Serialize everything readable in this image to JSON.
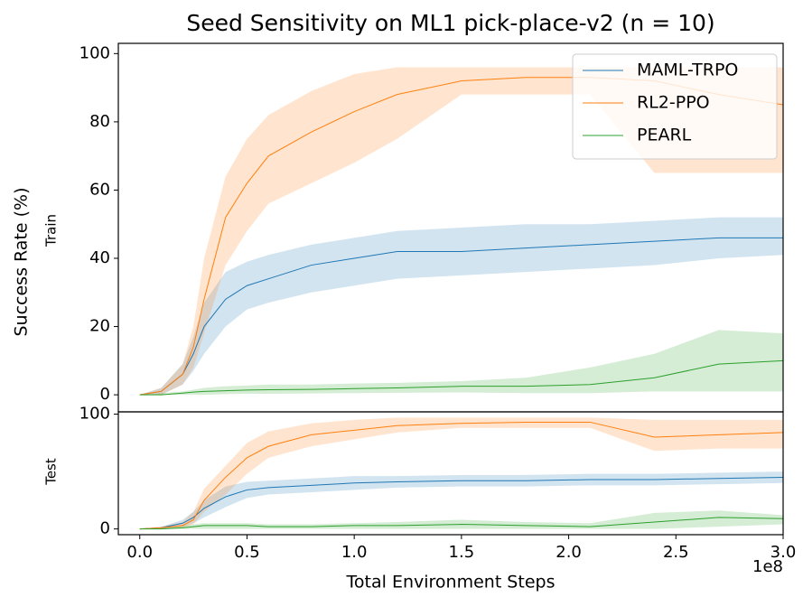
{
  "chart_data": [
    {
      "type": "line",
      "title": "Seed Sensitivity on ML1 pick-place-v2 (n = 10)",
      "ylabel": "Success Rate (%)",
      "panel_label": "Train",
      "x": [
        0,
        0.1,
        0.2,
        0.25,
        0.3,
        0.4,
        0.5,
        0.6,
        0.8,
        1.0,
        1.2,
        1.5,
        1.8,
        2.1,
        2.4,
        2.7,
        3.0
      ],
      "xlim": [
        -0.1,
        3.0
      ],
      "ylim": [
        -5,
        103
      ],
      "yticks": [
        0,
        20,
        40,
        60,
        80,
        100
      ],
      "legend": "upper right",
      "series": [
        {
          "name": "MAML-TRPO",
          "color": "#1f77b4",
          "values": [
            0,
            1,
            6,
            12,
            20,
            28,
            32,
            34,
            38,
            40,
            42,
            42,
            43,
            44,
            45,
            46,
            46
          ],
          "lower": [
            0,
            0,
            3,
            7,
            12,
            20,
            25,
            27,
            30,
            32,
            34,
            35,
            36,
            37,
            38,
            40,
            41
          ],
          "upper": [
            0,
            2,
            9,
            17,
            27,
            36,
            39,
            41,
            44,
            46,
            48,
            49,
            50,
            50,
            51,
            52,
            52
          ]
        },
        {
          "name": "RL2-PPO",
          "color": "#ff7f0e",
          "values": [
            0,
            1,
            6,
            14,
            28,
            52,
            62,
            70,
            77,
            83,
            88,
            92,
            93,
            93,
            92,
            88,
            85
          ],
          "lower": [
            0,
            0,
            3,
            8,
            18,
            38,
            48,
            56,
            62,
            68,
            75,
            88,
            88,
            88,
            65,
            65,
            65
          ],
          "upper": [
            0,
            2,
            9,
            20,
            40,
            64,
            75,
            82,
            89,
            94,
            96,
            96,
            96,
            96,
            96,
            96,
            96
          ]
        },
        {
          "name": "PEARL",
          "color": "#2ca02c",
          "values": [
            0,
            0,
            0.5,
            0.8,
            1,
            1.2,
            1.4,
            1.5,
            1.6,
            1.8,
            2,
            2.5,
            2.5,
            3,
            5,
            9,
            10
          ],
          "lower": [
            0,
            0,
            0,
            0,
            0,
            0.2,
            0.3,
            0.3,
            0.4,
            0.5,
            0.6,
            0.7,
            0.5,
            0.5,
            1,
            1,
            1
          ],
          "upper": [
            0,
            0.5,
            1,
            1.5,
            2,
            2.5,
            2.7,
            3,
            3,
            3.3,
            3.5,
            4,
            5,
            8,
            12,
            19,
            18
          ]
        }
      ]
    },
    {
      "type": "line",
      "panel_label": "Test",
      "xlabel": "Total Environment Steps",
      "x_offset_label": "1e8",
      "x": [
        0,
        0.1,
        0.2,
        0.25,
        0.3,
        0.4,
        0.5,
        0.6,
        0.8,
        1.0,
        1.2,
        1.5,
        1.8,
        2.1,
        2.4,
        2.7,
        3.0
      ],
      "xlim": [
        -0.1,
        3.0
      ],
      "ylim": [
        -5,
        102
      ],
      "yticks": [
        0,
        100
      ],
      "xticks": [
        {
          "value": 0,
          "label": "0.0"
        },
        0.5,
        {
          "value": 1,
          "label": "1.0"
        },
        1.5,
        {
          "value": 2,
          "label": "2.0"
        },
        2.5,
        {
          "value": 3,
          "label": "3.0"
        }
      ],
      "series": [
        {
          "name": "MAML-TRPO",
          "color": "#1f77b4",
          "values": [
            0,
            1,
            5,
            10,
            18,
            28,
            34,
            36,
            38,
            40,
            41,
            42,
            42,
            43,
            43,
            44,
            45
          ],
          "lower": [
            0,
            0,
            2,
            5,
            10,
            19,
            27,
            30,
            32,
            34,
            36,
            37,
            37,
            38,
            38,
            39,
            40
          ],
          "upper": [
            0,
            2,
            8,
            15,
            25,
            37,
            41,
            42,
            44,
            46,
            46,
            47,
            47,
            48,
            48,
            49,
            50
          ]
        },
        {
          "name": "RL2-PPO",
          "color": "#ff7f0e",
          "values": [
            0,
            1,
            3,
            8,
            25,
            45,
            62,
            72,
            82,
            86,
            90,
            92,
            93,
            93,
            80,
            82,
            84
          ],
          "lower": [
            0,
            0,
            1,
            4,
            15,
            30,
            48,
            62,
            72,
            78,
            84,
            88,
            88,
            88,
            68,
            70,
            70
          ],
          "upper": [
            0,
            2,
            6,
            15,
            35,
            55,
            75,
            85,
            92,
            95,
            97,
            97,
            97,
            97,
            95,
            95,
            95
          ]
        },
        {
          "name": "PEARL",
          "color": "#2ca02c",
          "values": [
            0,
            0,
            1,
            2,
            3,
            3,
            3,
            2,
            2,
            3,
            3,
            4,
            3,
            2,
            6,
            10,
            9
          ],
          "lower": [
            0,
            0,
            0,
            0,
            0,
            0,
            0,
            0,
            0,
            0,
            0,
            0,
            0,
            0,
            0,
            2,
            4
          ],
          "upper": [
            0,
            1,
            3,
            4,
            5,
            5,
            5,
            4,
            4,
            5,
            6,
            8,
            6,
            5,
            14,
            16,
            12
          ]
        }
      ]
    }
  ]
}
